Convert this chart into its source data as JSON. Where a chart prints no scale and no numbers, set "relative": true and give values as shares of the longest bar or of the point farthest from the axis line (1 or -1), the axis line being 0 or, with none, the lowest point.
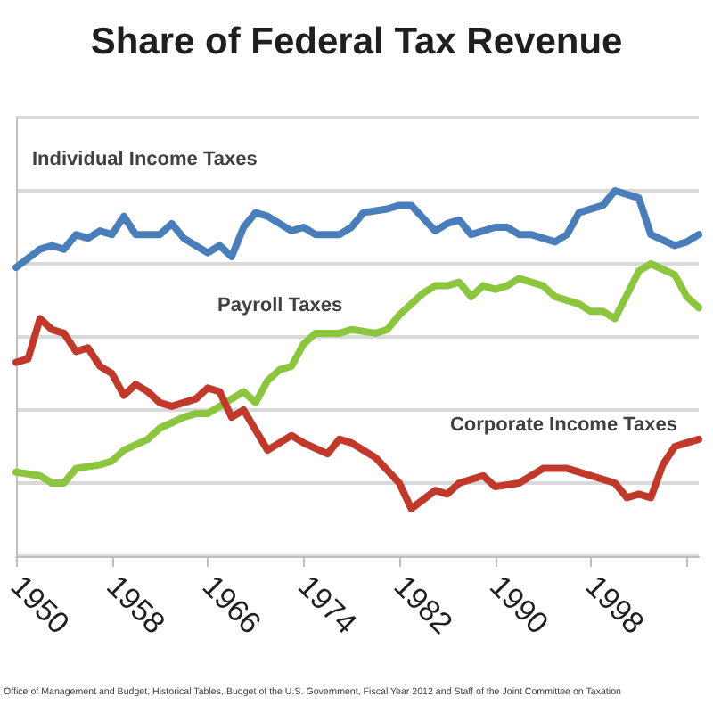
{
  "chart_data": {
    "type": "line",
    "title": "Share of Federal Tax Revenue",
    "relative": true,
    "grid": "y",
    "legend": false,
    "marker": "none",
    "line_style": "solid",
    "xlim": [
      1950,
      2007
    ],
    "xticks": [
      1950,
      1958,
      1966,
      1974,
      1982,
      1990,
      1998,
      {
        "value": 2006,
        "label": null
      }
    ],
    "annotations": [
      "Office of Management and Budget, Historical Tables, Budget of the U.S. Government, Fiscal Year 2012 and Staff of the Joint Committee on Taxation"
    ],
    "series": [
      {
        "name": "Individual Income Taxes",
        "color": "#4a7ebb",
        "x": [
          1950,
          1952,
          1953,
          1954,
          1955,
          1956,
          1957,
          1958,
          1959,
          1960,
          1962,
          1963,
          1964,
          1966,
          1967,
          1968,
          1969,
          1970,
          1971,
          1972,
          1973,
          1974,
          1975,
          1977,
          1978,
          1979,
          1981,
          1982,
          1983,
          1985,
          1986,
          1987,
          1988,
          1990,
          1991,
          1992,
          1993,
          1995,
          1996,
          1997,
          1999,
          2000,
          2002,
          2003,
          2005,
          2006,
          2007
        ],
        "values": [
          0.79,
          0.84,
          0.85,
          0.84,
          0.88,
          0.87,
          0.89,
          0.88,
          0.93,
          0.88,
          0.88,
          0.91,
          0.87,
          0.83,
          0.85,
          0.82,
          0.9,
          0.94,
          0.93,
          0.91,
          0.89,
          0.9,
          0.88,
          0.88,
          0.9,
          0.94,
          0.95,
          0.96,
          0.96,
          0.89,
          0.91,
          0.92,
          0.88,
          0.9,
          0.9,
          0.88,
          0.88,
          0.86,
          0.88,
          0.94,
          0.96,
          1.0,
          0.98,
          0.88,
          0.85,
          0.86,
          0.88
        ]
      },
      {
        "name": "Payroll Taxes",
        "color": "#8cc63e",
        "x": [
          1950,
          1952,
          1953,
          1954,
          1955,
          1957,
          1958,
          1959,
          1961,
          1962,
          1964,
          1965,
          1966,
          1968,
          1969,
          1970,
          1971,
          1972,
          1973,
          1974,
          1975,
          1977,
          1978,
          1980,
          1981,
          1982,
          1984,
          1985,
          1986,
          1987,
          1988,
          1989,
          1990,
          1991,
          1992,
          1994,
          1995,
          1997,
          1998,
          1999,
          2000,
          2002,
          2003,
          2005,
          2006,
          2007
        ],
        "values": [
          0.23,
          0.22,
          0.2,
          0.2,
          0.24,
          0.25,
          0.26,
          0.29,
          0.32,
          0.35,
          0.38,
          0.39,
          0.39,
          0.43,
          0.45,
          0.42,
          0.48,
          0.51,
          0.52,
          0.58,
          0.61,
          0.61,
          0.62,
          0.61,
          0.62,
          0.66,
          0.72,
          0.74,
          0.74,
          0.75,
          0.71,
          0.74,
          0.73,
          0.74,
          0.76,
          0.74,
          0.71,
          0.69,
          0.67,
          0.67,
          0.65,
          0.78,
          0.8,
          0.77,
          0.71,
          0.68
        ]
      },
      {
        "name": "Corporate Income Taxes",
        "color": "#c0392b",
        "x": [
          1950,
          1951,
          1952,
          1953,
          1954,
          1955,
          1956,
          1957,
          1958,
          1959,
          1960,
          1961,
          1962,
          1963,
          1965,
          1966,
          1967,
          1968,
          1969,
          1971,
          1973,
          1974,
          1976,
          1977,
          1978,
          1980,
          1982,
          1983,
          1985,
          1986,
          1987,
          1989,
          1990,
          1992,
          1994,
          1996,
          1997,
          2000,
          2001,
          2002,
          2003,
          2004,
          2005,
          2007
        ],
        "values": [
          0.53,
          0.54,
          0.65,
          0.62,
          0.61,
          0.56,
          0.57,
          0.52,
          0.5,
          0.44,
          0.47,
          0.45,
          0.42,
          0.41,
          0.43,
          0.46,
          0.45,
          0.38,
          0.4,
          0.29,
          0.33,
          0.31,
          0.28,
          0.32,
          0.31,
          0.27,
          0.2,
          0.13,
          0.18,
          0.17,
          0.2,
          0.22,
          0.19,
          0.2,
          0.24,
          0.24,
          0.23,
          0.2,
          0.16,
          0.17,
          0.16,
          0.25,
          0.3,
          0.32
        ]
      }
    ]
  }
}
